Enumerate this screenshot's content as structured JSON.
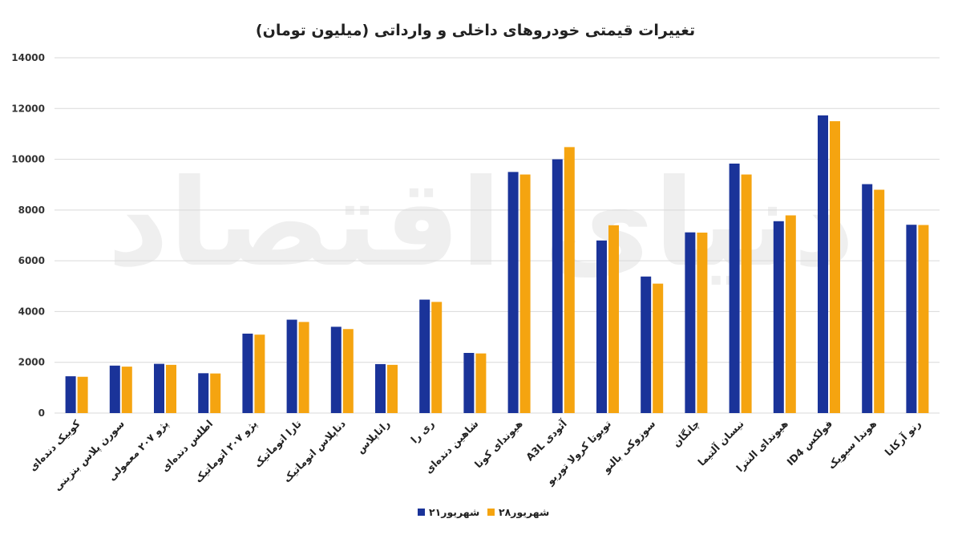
{
  "chart_data": {
    "type": "bar",
    "title": "تغییرات قیمتی خودروهای داخلی و وارداتی (میلیون تومان)",
    "xlabel": "",
    "ylabel": "",
    "ylim": [
      0,
      14000
    ],
    "y_ticks": [
      0,
      2000,
      4000,
      6000,
      8000,
      10000,
      12000,
      14000
    ],
    "y_tick_labels": [
      "0",
      "2000",
      "4000",
      "6000",
      "8000",
      "10000",
      "12000",
      "14000"
    ],
    "grid": true,
    "legend_position": "bottom",
    "categories": [
      "کوییک دنده‌ای",
      "سورن پلاس بنزینی",
      "پژو ۲۰۷ معمولی",
      "اطلس دنده‌ای",
      "پژو ۲۰۷ اتوماتیک",
      "تارا اتوماتیک",
      "دناپلاس اتوماتیک",
      "رانا‌پلاس",
      "ری را",
      "شاهین دنده‌ای",
      "هیوندای کونا",
      "آئودی A3L",
      "تویوتا کرولا توربو",
      "سوزوکی بالنو",
      "چانگان",
      "نیسان آلتیما",
      "هیوندای النترا",
      "فولکس ID4",
      "هوندا سیویک",
      "رنو آرکانا"
    ],
    "series": [
      {
        "name": "۲۱شهریور",
        "color": "#1a3399",
        "values": [
          1450,
          1870,
          1940,
          1570,
          3130,
          3680,
          3400,
          1930,
          4470,
          2370,
          9500,
          10000,
          6800,
          5380,
          7120,
          9830,
          7560,
          11730,
          9020,
          7420
        ]
      },
      {
        "name": "۲۸شهریور",
        "color": "#f5a410",
        "values": [
          1430,
          1830,
          1900,
          1560,
          3090,
          3590,
          3310,
          1900,
          4380,
          2350,
          9400,
          10480,
          7400,
          5100,
          7110,
          9400,
          7790,
          11500,
          8800,
          7410
        ]
      }
    ],
    "watermark": "دنیای اقتصاد"
  }
}
